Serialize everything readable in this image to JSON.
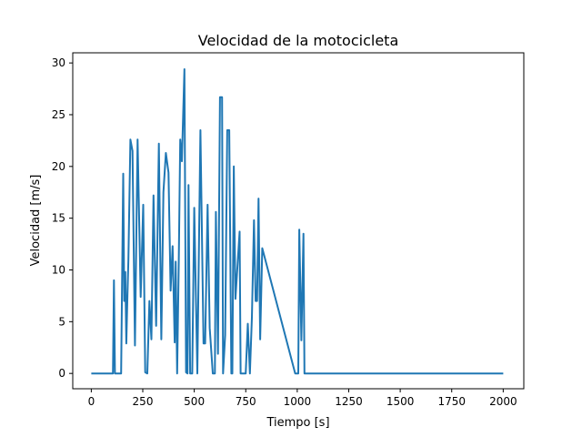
{
  "colors": {
    "series": "#1f77b4",
    "axes": "#000000",
    "background": "#ffffff"
  },
  "chart_data": {
    "type": "line",
    "title": "Velocidad de la motocicleta",
    "xlabel": "Tiempo [s]",
    "ylabel": "Velocidad [m/s]",
    "xlim": [
      -90,
      2100
    ],
    "ylim": [
      -1.48,
      30.98
    ],
    "xticks": [
      0,
      250,
      500,
      750,
      1000,
      1250,
      1500,
      1750,
      2000
    ],
    "yticks": [
      0,
      5,
      10,
      15,
      20,
      25,
      30
    ],
    "grid": false,
    "legend": "none",
    "series": [
      {
        "x": [
          0,
          105,
          110,
          115,
          130,
          145,
          155,
          160,
          165,
          170,
          175,
          180,
          190,
          200,
          212,
          225,
          240,
          252,
          262,
          272,
          282,
          292,
          302,
          315,
          328,
          340,
          350,
          362,
          375,
          385,
          395,
          405,
          410,
          417,
          425,
          432,
          440,
          452,
          460,
          467,
          472,
          480,
          490,
          500,
          515,
          530,
          545,
          553,
          565,
          575,
          590,
          600,
          605,
          615,
          625,
          635,
          640,
          650,
          660,
          670,
          680,
          685,
          692,
          700,
          720,
          725,
          740,
          750,
          760,
          770,
          780,
          790,
          798,
          805,
          812,
          820,
          830,
          990,
          1005,
          1010,
          1020,
          1030,
          1035,
          1040,
          1045,
          1050,
          1060,
          1065,
          1072,
          1078,
          1085,
          1090,
          1100,
          1110,
          1115,
          1120,
          1130,
          1140,
          1150,
          1160,
          1170,
          1185,
          2000
        ],
        "y": [
          0,
          0,
          9,
          0,
          0,
          0,
          19.3,
          7,
          9.8,
          2.9,
          7,
          11,
          22.6,
          21.5,
          2.7,
          22.6,
          7.4,
          16.3,
          0.1,
          0,
          7,
          3.3,
          17.2,
          4.6,
          22.2,
          3.3,
          17.5,
          21.3,
          19.4,
          8,
          12.3,
          3,
          10.8,
          0,
          10.9,
          22.6,
          20.5,
          29.4,
          0.1,
          0,
          18.2,
          0,
          0,
          16,
          0,
          23.5,
          2.9,
          2.9,
          16.3,
          4.4,
          0,
          0,
          15.6,
          1.9,
          26.7,
          26.7,
          0,
          3.7,
          23.5,
          23.5,
          0,
          0,
          20,
          7.2,
          13.7,
          0,
          0,
          0,
          4.8,
          0,
          5.4,
          14.8,
          7,
          7,
          16.9,
          3.3,
          12.1,
          0,
          0,
          13.9,
          3.2,
          13.5,
          0,
          0,
          0,
          0,
          0,
          0,
          0,
          0,
          0,
          0,
          0,
          0,
          0,
          0,
          0,
          0,
          0,
          0,
          0,
          0,
          0
        ]
      }
    ]
  }
}
